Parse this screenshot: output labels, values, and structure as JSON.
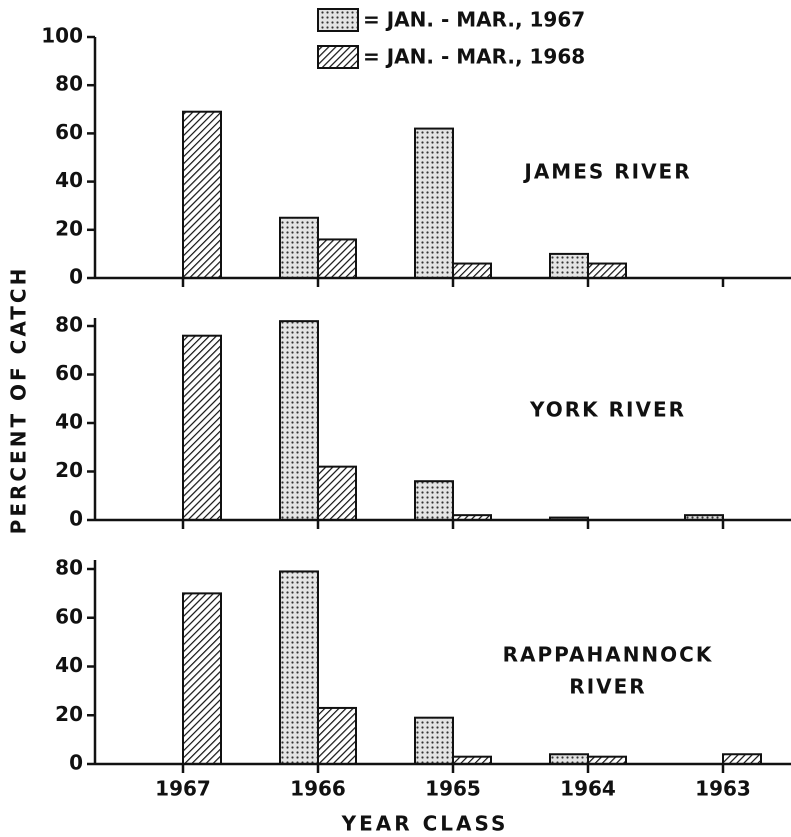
{
  "chart_data": {
    "type": "bar",
    "categories": [
      "1967",
      "1966",
      "1965",
      "1964",
      "1963"
    ],
    "x_label": "YEAR CLASS",
    "y_label": "PERCENT OF CATCH",
    "legend": [
      {
        "name": "= JAN. - MAR., 1967",
        "pattern": "dots"
      },
      {
        "name": "= JAN. - MAR., 1968",
        "pattern": "hatch"
      }
    ],
    "panels": [
      {
        "title_lines": [
          "JAMES RIVER"
        ],
        "ylim": [
          0,
          100
        ],
        "yticks": [
          0,
          20,
          40,
          60,
          80,
          100
        ],
        "series": [
          {
            "values": [
              null,
              25,
              62,
              10,
              null
            ]
          },
          {
            "values": [
              69,
              16,
              6,
              6,
              null
            ]
          }
        ]
      },
      {
        "title_lines": [
          "YORK RIVER"
        ],
        "ylim": [
          0,
          80
        ],
        "yticks": [
          0,
          20,
          40,
          60,
          80
        ],
        "series": [
          {
            "values": [
              null,
              82,
              16,
              1,
              2
            ]
          },
          {
            "values": [
              76,
              22,
              2,
              null,
              null
            ]
          }
        ]
      },
      {
        "title_lines": [
          "RAPPAHANNOCK",
          "RIVER"
        ],
        "ylim": [
          0,
          80
        ],
        "yticks": [
          0,
          20,
          40,
          60,
          80
        ],
        "series": [
          {
            "values": [
              null,
              79,
              19,
              4,
              null
            ]
          },
          {
            "values": [
              70,
              23,
              3,
              3,
              4
            ]
          }
        ]
      }
    ]
  }
}
